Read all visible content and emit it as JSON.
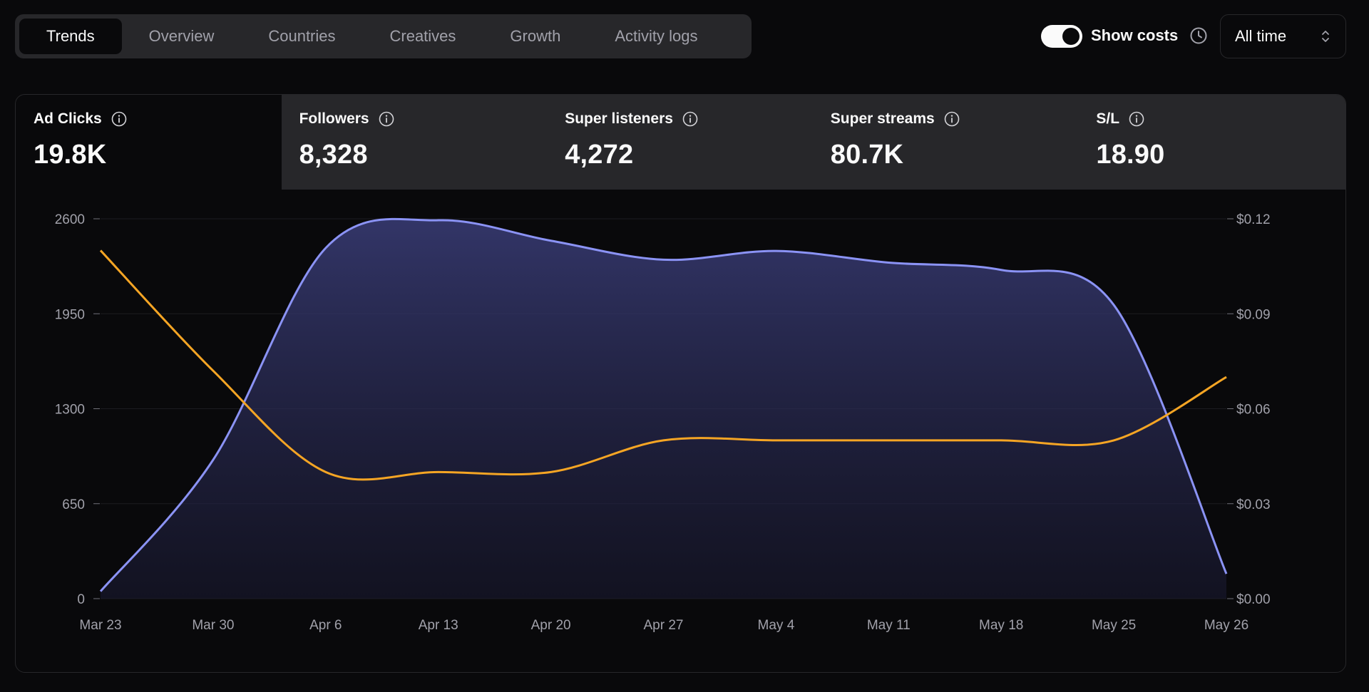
{
  "tabs": [
    {
      "label": "Trends",
      "active": true
    },
    {
      "label": "Overview",
      "active": false
    },
    {
      "label": "Countries",
      "active": false
    },
    {
      "label": "Creatives",
      "active": false
    },
    {
      "label": "Growth",
      "active": false
    },
    {
      "label": "Activity logs",
      "active": false
    }
  ],
  "controls": {
    "show_costs_label": "Show costs",
    "show_costs_on": true,
    "range_value": "All time",
    "clock_icon": "clock-icon",
    "select_icon": "chevron-up-down-icon"
  },
  "metrics": [
    {
      "label": "Ad Clicks",
      "value": "19.8K",
      "active": true
    },
    {
      "label": "Followers",
      "value": "8,328",
      "active": false
    },
    {
      "label": "Super listeners",
      "value": "4,272",
      "active": false
    },
    {
      "label": "Super streams",
      "value": "80.7K",
      "active": false
    },
    {
      "label": "S/L",
      "value": "18.90",
      "active": false
    }
  ],
  "colors": {
    "background": "#09090b",
    "panel": "#27272a",
    "clicks_line": "#8b93f5",
    "cost_line": "#f5a524"
  },
  "chart_data": {
    "type": "area",
    "x": [
      "Mar 23",
      "Mar 30",
      "Apr 6",
      "Apr 13",
      "Apr 20",
      "Apr 27",
      "May 4",
      "May 11",
      "May 18",
      "May 25",
      "May 26"
    ],
    "x_tick_labels": [
      "Mar 23",
      "Mar 30",
      "Apr 6",
      "Apr 13",
      "Apr 20",
      "Apr 27",
      "May 4",
      "May 11",
      "May 18",
      "May 25",
      "May 26"
    ],
    "y_left_ticks": [
      "0",
      "650",
      "1300",
      "1950",
      "2600"
    ],
    "y_right_ticks": [
      "$0.00",
      "$0.03",
      "$0.06",
      "$0.09",
      "$0.12"
    ],
    "ylim_left": [
      0,
      2600
    ],
    "ylim_right": [
      0,
      0.12
    ],
    "grid": true,
    "series": [
      {
        "axis": "left",
        "fill": true,
        "values": [
          50,
          950,
          2400,
          2590,
          2450,
          2320,
          2380,
          2300,
          2250,
          2010,
          170
        ]
      },
      {
        "axis": "right",
        "fill": false,
        "values": [
          0.11,
          0.072,
          0.04,
          0.04,
          0.04,
          0.05,
          0.05,
          0.05,
          0.05,
          0.05,
          0.07
        ]
      }
    ]
  }
}
